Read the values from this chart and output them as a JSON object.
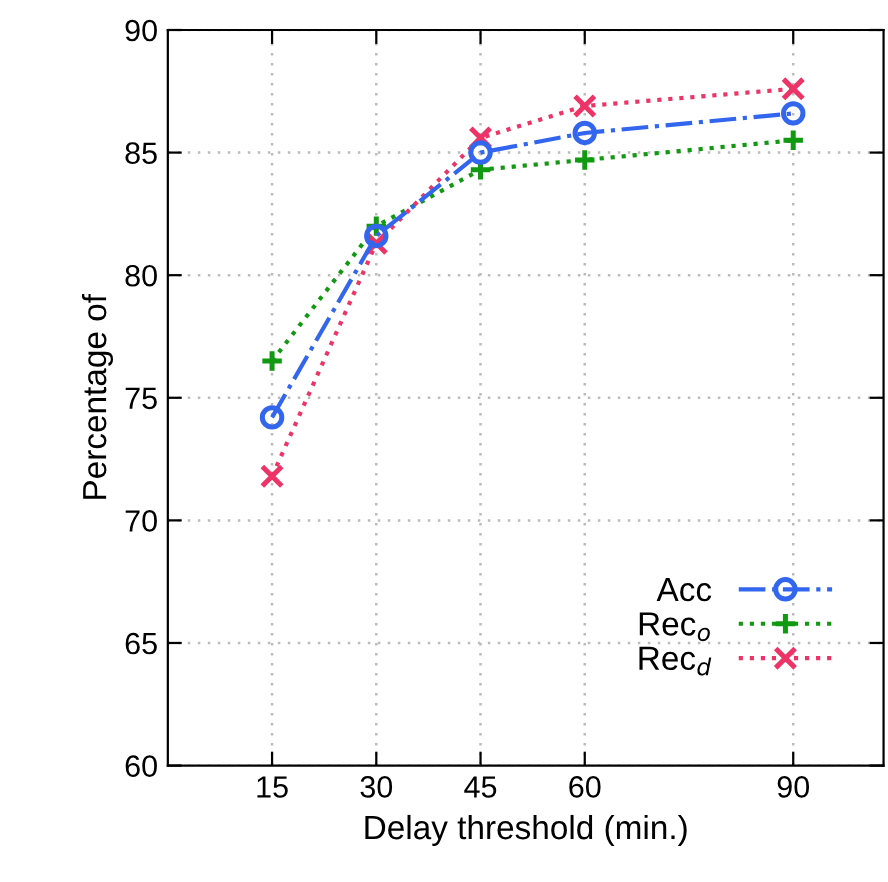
{
  "chart_data": {
    "type": "line",
    "xlabel": "Delay threshold (min.)",
    "ylabel": "Percentage of",
    "x": [
      15,
      30,
      45,
      60,
      90
    ],
    "xlim": [
      0,
      103
    ],
    "xticks": [
      15,
      30,
      45,
      60,
      90
    ],
    "ylim": [
      60,
      90
    ],
    "yticks": [
      60,
      65,
      70,
      75,
      80,
      85,
      90
    ],
    "grid": true,
    "legend": "bottom right",
    "series": [
      {
        "name": "Acc",
        "color": "#3366ee",
        "values": [
          74.2,
          81.6,
          85.0,
          85.8,
          86.6
        ],
        "marker": "circle",
        "line_style": "dashdot"
      },
      {
        "name": "Rec$_{o}$",
        "color": "#119911",
        "values": [
          76.5,
          82.0,
          84.3,
          84.7,
          85.5
        ],
        "marker": "cross",
        "line_style": "dotted"
      },
      {
        "name": "Rec$_{d}$",
        "color": "#ee3366",
        "values": [
          71.8,
          81.3,
          85.6,
          86.9,
          87.6
        ],
        "marker": "x",
        "line_style": "dotted"
      }
    ]
  }
}
